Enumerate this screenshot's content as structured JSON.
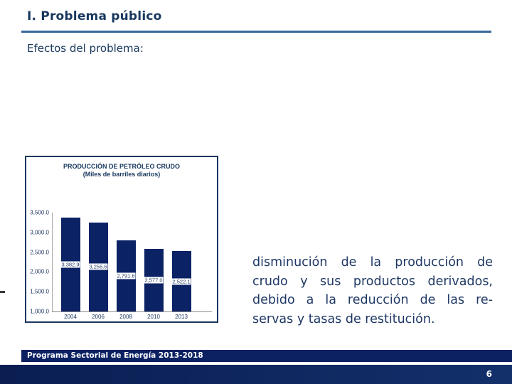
{
  "slide": {
    "title": "I. Problema público",
    "subtitle": "Efectos del problema:",
    "paragraph_lines": [
      "disminución de la producción de",
      "crudo y sus productos derivados,",
      "debido a la reducción de las re-",
      "servas y tasas de restitución."
    ],
    "footer": "Programa Sectorial de Energía 2013-2018",
    "page_number": "6"
  },
  "chart_data": {
    "type": "bar",
    "title": "PRODUCCIÓN DE PETRÓLEO CRUDO",
    "subtitle": "(Miles de barriles diarios)",
    "categories": [
      "2004",
      "2006",
      "2008",
      "2010",
      "2013"
    ],
    "values": [
      3382.9,
      3255.6,
      2791.6,
      2577.0,
      2522.1
    ],
    "value_labels": [
      "3,382.9",
      "3,255.6",
      "2,791.6",
      "2,577.0",
      "2,522.1"
    ],
    "y_ticks": [
      "3,500.0",
      "3,000.0",
      "2,500.0",
      "2,000.0",
      "1,500.0",
      "1,000.0"
    ],
    "ylim": [
      1000,
      3500
    ],
    "xlabel": "",
    "ylabel": "",
    "grid": false,
    "legend": null,
    "bar_color": "#0B2265"
  },
  "colors": {
    "accent_navy": "#17375E",
    "body_text_blue": "#1F3864",
    "bar_navy": "#0B2265",
    "band_navy": "#0B2161"
  }
}
